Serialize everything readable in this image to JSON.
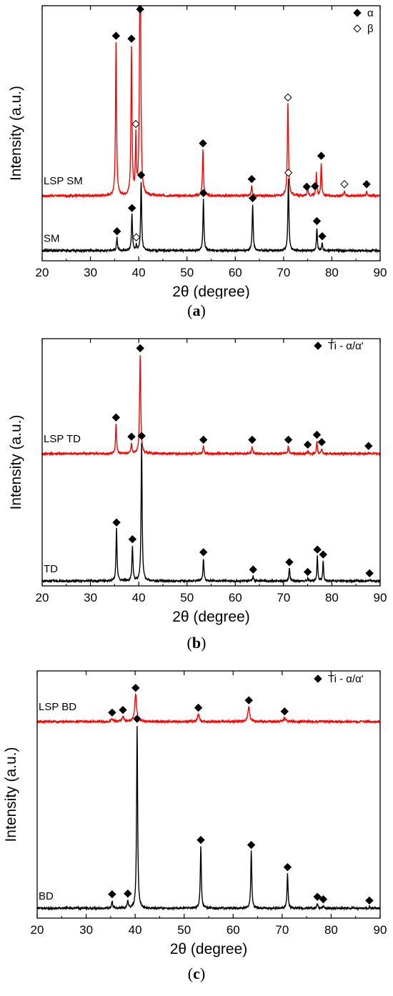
{
  "chart_data": [
    {
      "type": "line",
      "panel": "a",
      "caption_letter": "a",
      "xlabel": "2θ (degree)",
      "ylabel": "Intensity (a.u.)",
      "xlim": [
        20,
        90
      ],
      "xticks": [
        20,
        30,
        40,
        50,
        60,
        70,
        80,
        90
      ],
      "legend": [
        {
          "symbol": "filled-diamond",
          "label": "α"
        },
        {
          "symbol": "open-diamond",
          "label": "β"
        }
      ],
      "series": [
        {
          "name": "LSP SM",
          "color": "#ff0000",
          "baseline": 0.255,
          "peaks": [
            {
              "x": 35.3,
              "h": 0.6,
              "w": 0.25
            },
            {
              "x": 38.5,
              "h": 0.58,
              "w": 0.25
            },
            {
              "x": 39.4,
              "h": 0.22,
              "w": 0.22
            },
            {
              "x": 40.3,
              "h": 1.3,
              "w": 0.25
            },
            {
              "x": 53.3,
              "h": 0.18,
              "w": 0.25
            },
            {
              "x": 63.4,
              "h": 0.04,
              "w": 0.25
            },
            {
              "x": 70.9,
              "h": 0.36,
              "w": 0.28
            },
            {
              "x": 75.0,
              "h": 0.04,
              "w": 0.22
            },
            {
              "x": 76.8,
              "h": 0.09,
              "w": 0.22
            },
            {
              "x": 77.8,
              "h": 0.13,
              "w": 0.22
            },
            {
              "x": 82.6,
              "h": 0.02,
              "w": 0.25
            },
            {
              "x": 87.2,
              "h": 0.02,
              "w": 0.22
            }
          ],
          "markers": [
            {
              "x": 35.3,
              "kind": "filled"
            },
            {
              "x": 38.5,
              "kind": "filled"
            },
            {
              "x": 39.4,
              "kind": "open"
            },
            {
              "x": 40.3,
              "kind": "filled"
            },
            {
              "x": 53.3,
              "kind": "filled"
            },
            {
              "x": 63.4,
              "kind": "filled"
            },
            {
              "x": 70.9,
              "kind": "open"
            },
            {
              "x": 74.8,
              "kind": "filled"
            },
            {
              "x": 76.5,
              "kind": "filled"
            },
            {
              "x": 77.8,
              "kind": "filled"
            },
            {
              "x": 82.6,
              "kind": "open"
            },
            {
              "x": 87.2,
              "kind": "filled"
            }
          ]
        },
        {
          "name": "SM",
          "color": "#000000",
          "baseline": 0.04,
          "peaks": [
            {
              "x": 35.5,
              "h": 0.05,
              "w": 0.25
            },
            {
              "x": 38.6,
              "h": 0.14,
              "w": 0.25
            },
            {
              "x": 39.5,
              "h": 0.02,
              "w": 0.22
            },
            {
              "x": 40.5,
              "h": 0.27,
              "w": 0.25
            },
            {
              "x": 53.4,
              "h": 0.2,
              "w": 0.25
            },
            {
              "x": 63.6,
              "h": 0.18,
              "w": 0.25
            },
            {
              "x": 71.0,
              "h": 0.28,
              "w": 0.25
            },
            {
              "x": 76.9,
              "h": 0.09,
              "w": 0.22
            },
            {
              "x": 78.0,
              "h": 0.03,
              "w": 0.22
            }
          ],
          "markers": [
            {
              "x": 35.5,
              "kind": "filled"
            },
            {
              "x": 38.6,
              "kind": "filled"
            },
            {
              "x": 39.5,
              "kind": "open"
            },
            {
              "x": 40.5,
              "kind": "filled"
            },
            {
              "x": 53.4,
              "kind": "filled"
            },
            {
              "x": 63.6,
              "kind": "filled"
            },
            {
              "x": 71.0,
              "kind": "open"
            },
            {
              "x": 76.9,
              "kind": "filled"
            },
            {
              "x": 78.0,
              "kind": "filled"
            }
          ]
        }
      ]
    },
    {
      "type": "line",
      "panel": "b",
      "caption_letter": "b",
      "xlabel": "2θ (degree)",
      "ylabel": "Intensity (a.u.)",
      "xlim": [
        20,
        90
      ],
      "xticks": [
        20,
        30,
        40,
        50,
        60,
        70,
        80,
        90
      ],
      "legend": [
        {
          "symbol": "filled-diamond",
          "label": "Ti - α/α'"
        }
      ],
      "series": [
        {
          "name": "LSP TD",
          "color": "#ff0000",
          "baseline": 0.535,
          "peaks": [
            {
              "x": 35.3,
              "h": 0.12,
              "w": 0.25
            },
            {
              "x": 38.5,
              "h": 0.04,
              "w": 0.25
            },
            {
              "x": 40.3,
              "h": 0.4,
              "w": 0.28
            },
            {
              "x": 53.4,
              "h": 0.03,
              "w": 0.25
            },
            {
              "x": 63.5,
              "h": 0.03,
              "w": 0.25
            },
            {
              "x": 71.0,
              "h": 0.03,
              "w": 0.25
            },
            {
              "x": 75.0,
              "h": 0.01,
              "w": 0.22
            },
            {
              "x": 76.9,
              "h": 0.05,
              "w": 0.22
            },
            {
              "x": 77.9,
              "h": 0.02,
              "w": 0.22
            },
            {
              "x": 87.6,
              "h": 0.005,
              "w": 0.22
            }
          ],
          "markers": [
            {
              "x": 35.3,
              "kind": "filled"
            },
            {
              "x": 38.5,
              "kind": "filled"
            },
            {
              "x": 40.3,
              "kind": "filled"
            },
            {
              "x": 53.4,
              "kind": "filled"
            },
            {
              "x": 63.5,
              "kind": "filled"
            },
            {
              "x": 71.0,
              "kind": "filled"
            },
            {
              "x": 75.0,
              "kind": "filled"
            },
            {
              "x": 76.9,
              "kind": "filled"
            },
            {
              "x": 77.9,
              "kind": "filled"
            },
            {
              "x": 87.6,
              "kind": "filled"
            }
          ]
        },
        {
          "name": "TD",
          "color": "#000000",
          "baseline": 0.02,
          "peaks": [
            {
              "x": 35.4,
              "h": 0.21,
              "w": 0.25
            },
            {
              "x": 38.7,
              "h": 0.14,
              "w": 0.25
            },
            {
              "x": 40.6,
              "h": 0.56,
              "w": 0.25
            },
            {
              "x": 53.4,
              "h": 0.09,
              "w": 0.25
            },
            {
              "x": 63.7,
              "h": 0.02,
              "w": 0.25
            },
            {
              "x": 71.2,
              "h": 0.05,
              "w": 0.25
            },
            {
              "x": 75.0,
              "h": 0.01,
              "w": 0.22
            },
            {
              "x": 77.0,
              "h": 0.1,
              "w": 0.22
            },
            {
              "x": 78.2,
              "h": 0.08,
              "w": 0.22
            },
            {
              "x": 87.8,
              "h": 0.005,
              "w": 0.22
            }
          ],
          "markers": [
            {
              "x": 35.4,
              "kind": "filled"
            },
            {
              "x": 38.7,
              "kind": "filled"
            },
            {
              "x": 40.6,
              "kind": "filled"
            },
            {
              "x": 53.4,
              "kind": "filled"
            },
            {
              "x": 63.7,
              "kind": "filled"
            },
            {
              "x": 71.2,
              "kind": "filled"
            },
            {
              "x": 75.0,
              "kind": "filled"
            },
            {
              "x": 77.0,
              "kind": "filled"
            },
            {
              "x": 78.2,
              "kind": "filled"
            },
            {
              "x": 87.8,
              "kind": "filled"
            }
          ]
        }
      ]
    },
    {
      "type": "line",
      "panel": "c",
      "caption_letter": "c",
      "xlabel": "2θ (degree)",
      "ylabel": "Intensity (a.u.)",
      "xlim": [
        20,
        90
      ],
      "xticks": [
        20,
        30,
        40,
        50,
        60,
        70,
        80,
        90
      ],
      "legend": [
        {
          "symbol": "filled-diamond",
          "label": "Ti - α/α'"
        }
      ],
      "series": [
        {
          "name": "LSP BD",
          "color": "#ff0000",
          "baseline": 0.795,
          "peaks": [
            {
              "x": 35.3,
              "h": 0.01,
              "w": 0.45
            },
            {
              "x": 37.5,
              "h": 0.02,
              "w": 0.45
            },
            {
              "x": 40.1,
              "h": 0.11,
              "w": 0.45
            },
            {
              "x": 52.9,
              "h": 0.03,
              "w": 0.45
            },
            {
              "x": 63.2,
              "h": 0.06,
              "w": 0.45
            },
            {
              "x": 70.5,
              "h": 0.015,
              "w": 0.45
            }
          ],
          "markers": [
            {
              "x": 35.3,
              "kind": "filled"
            },
            {
              "x": 37.5,
              "kind": "filled"
            },
            {
              "x": 40.1,
              "kind": "filled"
            },
            {
              "x": 52.9,
              "kind": "filled"
            },
            {
              "x": 63.2,
              "kind": "filled"
            },
            {
              "x": 70.5,
              "kind": "filled"
            }
          ]
        },
        {
          "name": "BD",
          "color": "#000000",
          "baseline": 0.04,
          "peaks": [
            {
              "x": 35.3,
              "h": 0.03,
              "w": 0.25
            },
            {
              "x": 38.5,
              "h": 0.03,
              "w": 0.25
            },
            {
              "x": 40.4,
              "h": 0.74,
              "w": 0.25
            },
            {
              "x": 53.4,
              "h": 0.25,
              "w": 0.25
            },
            {
              "x": 63.7,
              "h": 0.23,
              "w": 0.25
            },
            {
              "x": 71.1,
              "h": 0.14,
              "w": 0.25
            },
            {
              "x": 77.2,
              "h": 0.02,
              "w": 0.22
            },
            {
              "x": 78.4,
              "h": 0.01,
              "w": 0.22
            },
            {
              "x": 87.8,
              "h": 0.005,
              "w": 0.22
            }
          ],
          "markers": [
            {
              "x": 35.3,
              "kind": "filled"
            },
            {
              "x": 38.5,
              "kind": "filled"
            },
            {
              "x": 40.4,
              "kind": "filled"
            },
            {
              "x": 53.4,
              "kind": "filled"
            },
            {
              "x": 63.7,
              "kind": "filled"
            },
            {
              "x": 71.1,
              "kind": "filled"
            },
            {
              "x": 77.2,
              "kind": "filled"
            },
            {
              "x": 78.4,
              "kind": "filled"
            },
            {
              "x": 87.8,
              "kind": "filled"
            }
          ]
        }
      ]
    }
  ]
}
